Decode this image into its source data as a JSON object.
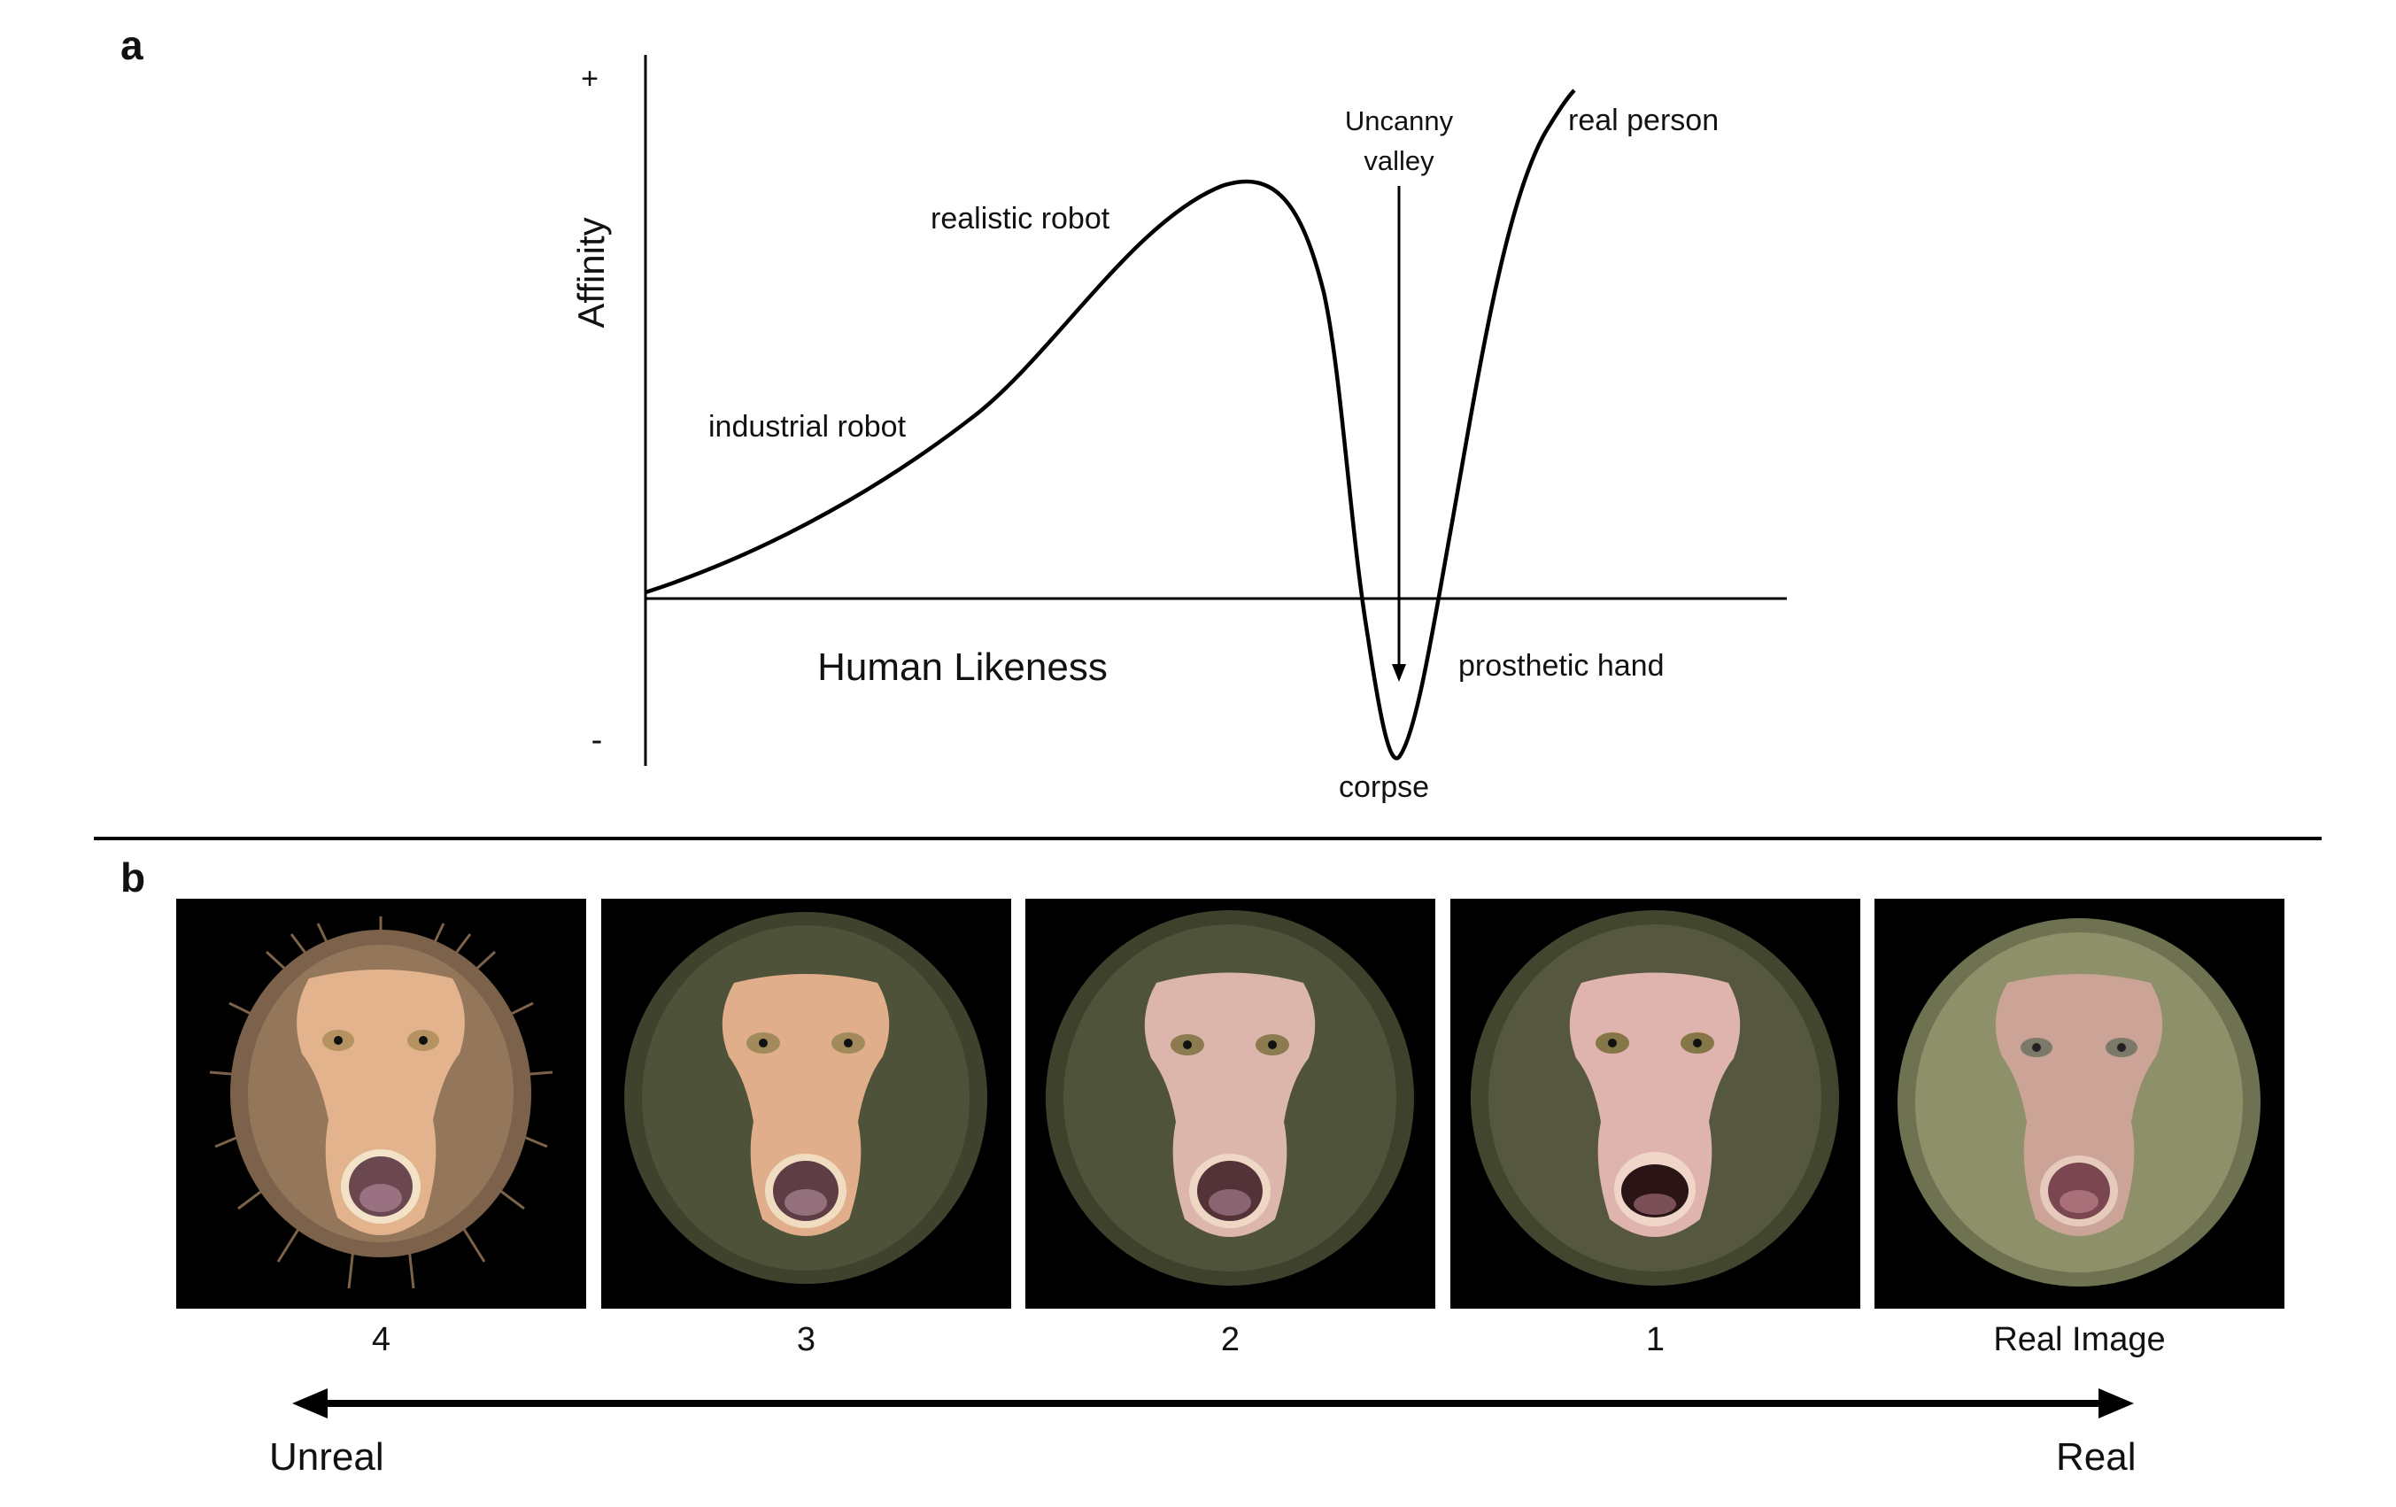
{
  "panel_a": {
    "label": "a",
    "y_axis": {
      "title": "Affinity",
      "positive_tick": "+",
      "negative_tick": "-"
    },
    "x_axis": {
      "title": "Human Likeness"
    },
    "annotations": {
      "industrial_robot": "industrial robot",
      "realistic_robot": "realistic robot",
      "uncanny_valley_line1": "Uncanny",
      "uncanny_valley_line2": "valley",
      "real_person": "real person",
      "prosthetic_hand": "prosthetic hand",
      "corpse": "corpse"
    }
  },
  "panel_b": {
    "label": "b",
    "images": [
      {
        "label": "4",
        "style": "untextured-skin-spiky-fur",
        "fur_color": "#8a6d52",
        "skin_color": "#e3b38e"
      },
      {
        "label": "3",
        "style": "untextured-skin-green-fur",
        "fur_color": "#4e5238",
        "skin_color": "#e1ae8c"
      },
      {
        "label": "2",
        "style": "textured-skin-green-fur",
        "fur_color": "#4f533a",
        "skin_color": "#dcb6ad"
      },
      {
        "label": "1",
        "style": "detailed-skin-green-fur",
        "fur_color": "#55583f",
        "skin_color": "#dfb4ae"
      },
      {
        "label": "Real Image",
        "style": "photograph",
        "fur_color": "#8d9068",
        "skin_color": "#cfa49a"
      }
    ],
    "scale": {
      "left_label": "Unreal",
      "right_label": "Real"
    }
  }
}
